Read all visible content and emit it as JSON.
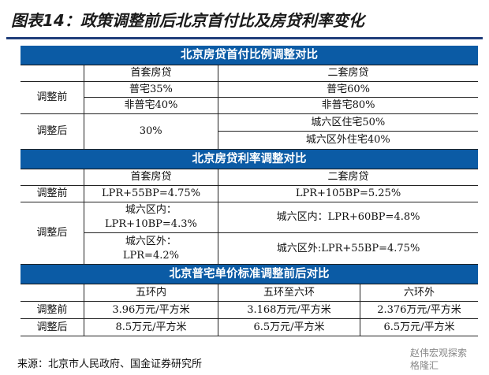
{
  "title": "图表14：政策调整前后北京首付比及房贷利率变化",
  "section1": {
    "header": "北京房贷首付比例调整对比",
    "col_first": "首套房贷",
    "col_second": "二套房贷",
    "before_label": "调整前",
    "before_first_1": "普宅35%",
    "before_first_2": "非普宅40%",
    "before_second_1": "普宅60%",
    "before_second_2": "非普宅80%",
    "after_label": "调整后",
    "after_first": "30%",
    "after_second_1": "城六区住宅50%",
    "after_second_2": "城六区外住宅40%"
  },
  "section2": {
    "header": "北京房贷利率调整对比",
    "col_first": "首套房贷",
    "col_second": "二套房贷",
    "before_label": "调整前",
    "before_first": "LPR+55BP=4.75%",
    "before_second": "LPR+105BP=5.25%",
    "after_label": "调整后",
    "after_first_1": "城六区内：\nLPR+10BP=4.3%",
    "after_first_2": "城六区外：\nLPR=4.2%",
    "after_second_1": "城六区内：LPR+60BP=4.8%",
    "after_second_2": "城六区外:LPR+55BP=4.75%"
  },
  "section3": {
    "header": "北京普宅单价标准调整前后对比",
    "col_1": "五环内",
    "col_2": "五环至六环",
    "col_3": "六环外",
    "before_label": "调整前",
    "before_1": "3.96万元/平方米",
    "before_2": "3.168万元/平方米",
    "before_3": "2.376万元/平方米",
    "after_label": "调整后",
    "after_1": "8.5万元/平方米",
    "after_2": "6.5万元/平方米",
    "after_3": "6.5万元/平方米"
  },
  "source": "来源：北京市人民政府、国金证券研究所",
  "watermark": "赵伟宏观探索\n格隆汇"
}
